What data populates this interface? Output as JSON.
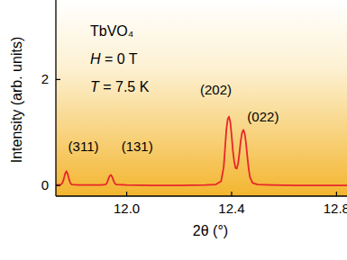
{
  "chart_data": {
    "type": "line",
    "x_label": "2θ (°)",
    "y_label": "Intensity (arb. units)",
    "inset_text": [
      "TbVO₄",
      "H = 0 T",
      "T = 7.5 K"
    ],
    "x": [
      11.73,
      11.75,
      11.755,
      11.76,
      11.765,
      11.77,
      11.775,
      11.78,
      11.785,
      11.79,
      11.82,
      11.86,
      11.9,
      11.92,
      11.925,
      11.93,
      11.935,
      11.94,
      11.945,
      11.95,
      11.955,
      11.96,
      12.0,
      12.1,
      12.2,
      12.3,
      12.34,
      12.36,
      12.37,
      12.375,
      12.38,
      12.385,
      12.39,
      12.395,
      12.4,
      12.405,
      12.41,
      12.415,
      12.42,
      12.425,
      12.43,
      12.435,
      12.44,
      12.445,
      12.45,
      12.455,
      12.46,
      12.465,
      12.47,
      12.48,
      12.5,
      12.55,
      12.65,
      12.75,
      12.84
    ],
    "series": [
      {
        "color": "#e8262a",
        "line_style": "solid",
        "values": [
          0.01,
          0.02,
          0.05,
          0.12,
          0.22,
          0.27,
          0.22,
          0.12,
          0.05,
          0.02,
          0.01,
          0.01,
          0.01,
          0.02,
          0.05,
          0.12,
          0.18,
          0.2,
          0.16,
          0.09,
          0.04,
          0.02,
          0.01,
          0.0,
          0.0,
          0.01,
          0.02,
          0.08,
          0.35,
          0.7,
          1.05,
          1.25,
          1.3,
          1.2,
          0.95,
          0.65,
          0.45,
          0.33,
          0.32,
          0.42,
          0.62,
          0.85,
          1.0,
          1.05,
          0.98,
          0.8,
          0.55,
          0.32,
          0.16,
          0.05,
          0.02,
          0.01,
          0.0,
          0.0,
          0.0
        ]
      }
    ],
    "xlim": [
      11.73,
      12.84
    ],
    "xticks": [
      {
        "value": 12,
        "label": "12.0"
      },
      12.4,
      12.8
    ],
    "ylim": [
      -0.2,
      3.5
    ],
    "yticks": [
      0,
      2
    ],
    "annotations": [
      {
        "text": "(311)",
        "x": 11.835,
        "y": 0.73
      },
      {
        "text": "(131)",
        "x": 12.04,
        "y": 0.73
      },
      {
        "text": "(202)",
        "x": 12.34,
        "y": 1.81
      },
      {
        "text": "(022)",
        "x": 12.52,
        "y": 1.3
      }
    ]
  }
}
